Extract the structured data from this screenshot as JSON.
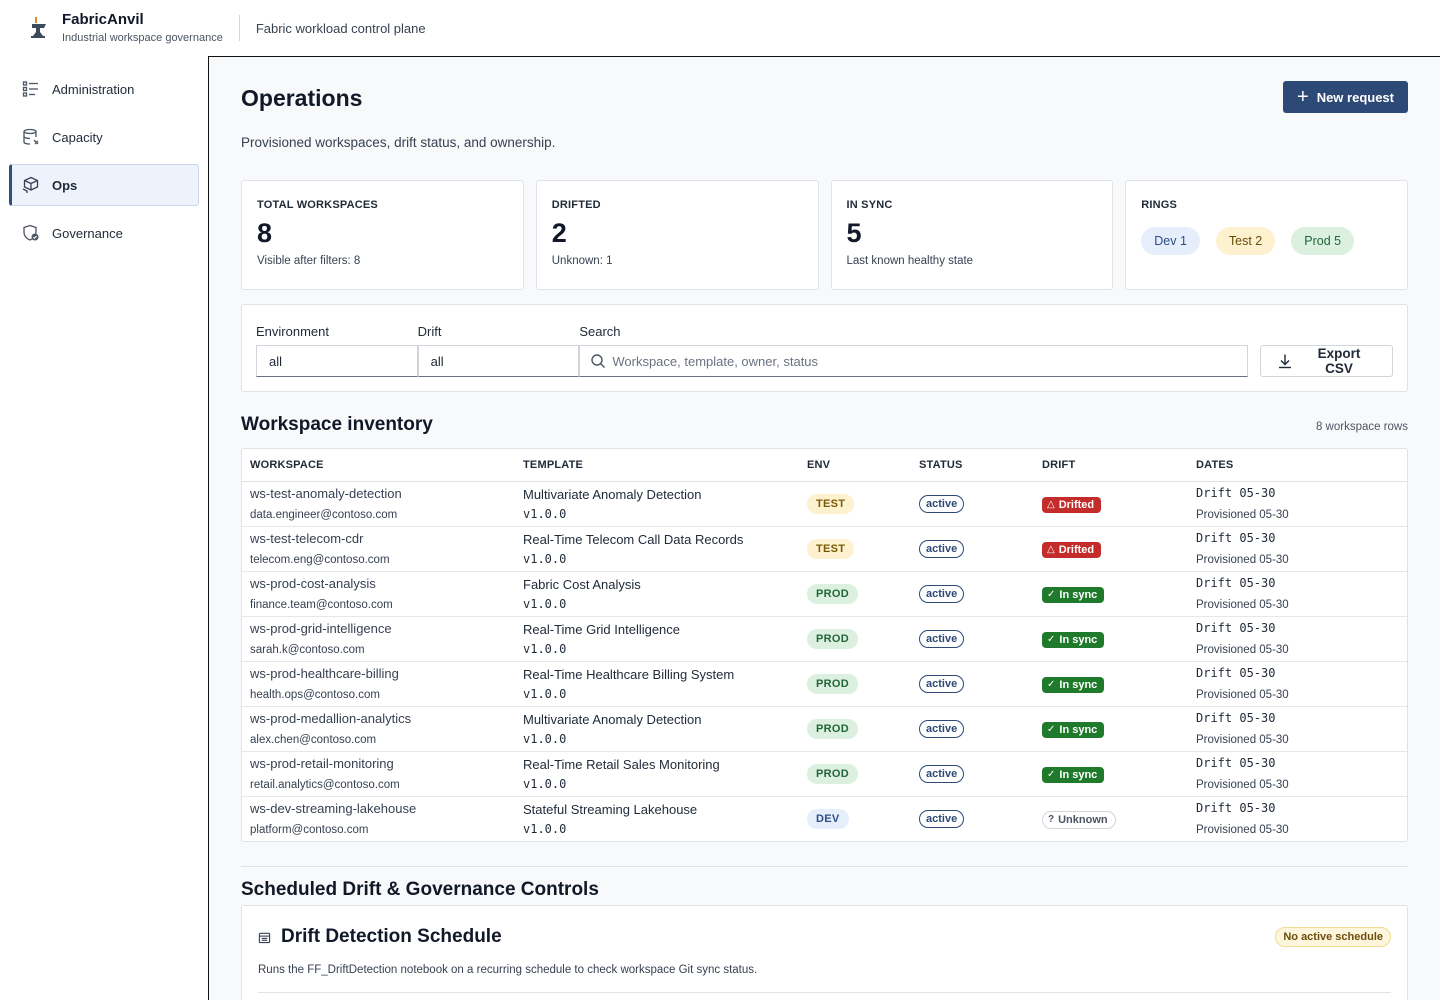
{
  "app": {
    "name": "FabricAnvil",
    "subtitle": "Industrial workspace governance",
    "context": "Fabric workload control plane"
  },
  "sidebar": {
    "items": [
      {
        "label": "Administration",
        "icon": "list-settings-icon",
        "active": false
      },
      {
        "label": "Capacity",
        "icon": "database-icon",
        "active": false
      },
      {
        "label": "Ops",
        "icon": "cubes-icon",
        "active": true
      },
      {
        "label": "Governance",
        "icon": "shield-check-icon",
        "active": false
      }
    ]
  },
  "page": {
    "title": "Operations",
    "subtitle": "Provisioned workspaces, drift status, and ownership.",
    "new_request_label": "New request"
  },
  "stats": {
    "total": {
      "label": "TOTAL WORKSPACES",
      "value": "8",
      "note": "Visible after filters: 8"
    },
    "drifted": {
      "label": "DRIFTED",
      "value": "2",
      "note": "Unknown: 1"
    },
    "in_sync": {
      "label": "IN SYNC",
      "value": "5",
      "note": "Last known healthy state"
    },
    "rings": {
      "label": "RINGS",
      "dev": "Dev 1",
      "test": "Test 2",
      "prod": "Prod 5"
    }
  },
  "filters": {
    "environment_label": "Environment",
    "environment_value": "all",
    "drift_label": "Drift",
    "drift_value": "all",
    "search_label": "Search",
    "search_placeholder": "Workspace, template, owner, status",
    "export_label": "Export CSV"
  },
  "inventory": {
    "title": "Workspace inventory",
    "count": "8 workspace rows",
    "columns": [
      "WORKSPACE",
      "TEMPLATE",
      "ENV",
      "STATUS",
      "DRIFT",
      "DATES"
    ],
    "rows": [
      {
        "workspace": "ws-test-anomaly-detection",
        "owner": "data.engineer@contoso.com",
        "template": "Multivariate Anomaly Detection",
        "version": "v1.0.0",
        "env": "TEST",
        "status": "active",
        "drift": "Drifted",
        "drift_kind": "drifted",
        "drift_date": "Drift 05-30",
        "prov_date": "Provisioned 05-30"
      },
      {
        "workspace": "ws-test-telecom-cdr",
        "owner": "telecom.eng@contoso.com",
        "template": "Real-Time Telecom Call Data Records",
        "version": "v1.0.0",
        "env": "TEST",
        "status": "active",
        "drift": "Drifted",
        "drift_kind": "drifted",
        "drift_date": "Drift 05-30",
        "prov_date": "Provisioned 05-30"
      },
      {
        "workspace": "ws-prod-cost-analysis",
        "owner": "finance.team@contoso.com",
        "template": "Fabric Cost Analysis",
        "version": "v1.0.0",
        "env": "PROD",
        "status": "active",
        "drift": "In sync",
        "drift_kind": "insync",
        "drift_date": "Drift 05-30",
        "prov_date": "Provisioned 05-30"
      },
      {
        "workspace": "ws-prod-grid-intelligence",
        "owner": "sarah.k@contoso.com",
        "template": "Real-Time Grid Intelligence",
        "version": "v1.0.0",
        "env": "PROD",
        "status": "active",
        "drift": "In sync",
        "drift_kind": "insync",
        "drift_date": "Drift 05-30",
        "prov_date": "Provisioned 05-30"
      },
      {
        "workspace": "ws-prod-healthcare-billing",
        "owner": "health.ops@contoso.com",
        "template": "Real-Time Healthcare Billing System",
        "version": "v1.0.0",
        "env": "PROD",
        "status": "active",
        "drift": "In sync",
        "drift_kind": "insync",
        "drift_date": "Drift 05-30",
        "prov_date": "Provisioned 05-30"
      },
      {
        "workspace": "ws-prod-medallion-analytics",
        "owner": "alex.chen@contoso.com",
        "template": "Multivariate Anomaly Detection",
        "version": "v1.0.0",
        "env": "PROD",
        "status": "active",
        "drift": "In sync",
        "drift_kind": "insync",
        "drift_date": "Drift 05-30",
        "prov_date": "Provisioned 05-30"
      },
      {
        "workspace": "ws-prod-retail-monitoring",
        "owner": "retail.analytics@contoso.com",
        "template": "Real-Time Retail Sales Monitoring",
        "version": "v1.0.0",
        "env": "PROD",
        "status": "active",
        "drift": "In sync",
        "drift_kind": "insync",
        "drift_date": "Drift 05-30",
        "prov_date": "Provisioned 05-30"
      },
      {
        "workspace": "ws-dev-streaming-lakehouse",
        "owner": "platform@contoso.com",
        "template": "Stateful Streaming Lakehouse",
        "version": "v1.0.0",
        "env": "DEV",
        "status": "active",
        "drift": "Unknown",
        "drift_kind": "unknown",
        "drift_date": "Drift 05-30",
        "prov_date": "Provisioned 05-30"
      }
    ]
  },
  "controls": {
    "title": "Scheduled Drift & Governance Controls",
    "schedule_title": "Drift Detection Schedule",
    "schedule_badge": "No active schedule",
    "schedule_desc": "Runs the FF_DriftDetection notebook on a recurring schedule to check workspace Git sync status."
  },
  "colors": {
    "primary": "#2d4a76",
    "drifted": "#c42b2b",
    "in_sync": "#1f7a2c"
  }
}
